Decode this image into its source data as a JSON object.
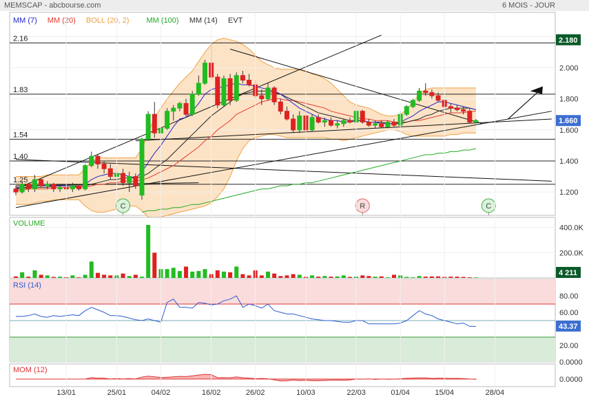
{
  "header": {
    "symbol_source": "MEMSCAP - abcbourse.com",
    "period": "6 MOIS - JOUR"
  },
  "legend": [
    {
      "label": "MM (7)",
      "color": "#2222cc"
    },
    {
      "label": "MM (20)",
      "color": "#e33b2e"
    },
    {
      "label": "BOLL (20, 2)",
      "color": "#f0a040"
    },
    {
      "label": "MM (100)",
      "color": "#22aa22"
    },
    {
      "label": "MM (14)",
      "color": "#333333"
    },
    {
      "label": "EVT",
      "color": "#333333"
    }
  ],
  "levels": [
    {
      "label": "2.16",
      "value": 2.16
    },
    {
      "label": "1.83",
      "value": 1.83
    },
    {
      "label": "1.54",
      "value": 1.54
    },
    {
      "label": "1.40",
      "value": 1.4
    },
    {
      "label": "1.25",
      "value": 1.25
    }
  ],
  "events": [
    {
      "letter": "C",
      "date_index": 17
    },
    {
      "letter": "R",
      "date_index": 55
    },
    {
      "letter": "C",
      "date_index": 75
    }
  ],
  "last_price_badge": "2.180",
  "current_price_badge": "1.660",
  "volume_label": "VOLUME",
  "volume_badge": "4 211",
  "rsi_label": "RSI (14)",
  "rsi_badge": "43.37",
  "mom_label": "MOM (12)",
  "colors": {
    "up": "#22bb22",
    "down": "#dd2222",
    "boll_fill": "#fde3c6",
    "panel_border": "#999999"
  },
  "chart_data": {
    "type": "candlestick",
    "x_tick_labels": [
      {
        "label": "13/01",
        "index": 8
      },
      {
        "label": "25/01",
        "index": 16
      },
      {
        "label": "04/02",
        "index": 23
      },
      {
        "label": "16/02",
        "index": 31
      },
      {
        "label": "26/02",
        "index": 38
      },
      {
        "label": "10/03",
        "index": 46
      },
      {
        "label": "22/03",
        "index": 54
      },
      {
        "label": "01/04",
        "index": 61
      },
      {
        "label": "15/04",
        "index": 68
      },
      {
        "label": "28/04",
        "index": 76
      }
    ],
    "price_axis": {
      "ticks": [
        2.2,
        2.0,
        1.8,
        1.6,
        1.4,
        1.2
      ],
      "tick_labels": [
        "2.200",
        "2.000",
        "1.800",
        "1.600",
        "1.400",
        "1.200"
      ],
      "ylim": [
        1.05,
        2.25
      ]
    },
    "candles": [
      [
        1.22,
        1.24,
        1.18,
        1.2
      ],
      [
        1.2,
        1.27,
        1.19,
        1.25
      ],
      [
        1.25,
        1.26,
        1.2,
        1.22
      ],
      [
        1.22,
        1.31,
        1.2,
        1.28
      ],
      [
        1.28,
        1.29,
        1.23,
        1.24
      ],
      [
        1.24,
        1.27,
        1.22,
        1.25
      ],
      [
        1.25,
        1.26,
        1.2,
        1.22
      ],
      [
        1.22,
        1.25,
        1.2,
        1.23
      ],
      [
        1.23,
        1.25,
        1.21,
        1.22
      ],
      [
        1.22,
        1.26,
        1.2,
        1.24
      ],
      [
        1.24,
        1.25,
        1.21,
        1.22
      ],
      [
        1.22,
        1.38,
        1.21,
        1.37
      ],
      [
        1.37,
        1.46,
        1.36,
        1.43
      ],
      [
        1.43,
        1.44,
        1.35,
        1.38
      ],
      [
        1.38,
        1.4,
        1.32,
        1.35
      ],
      [
        1.35,
        1.38,
        1.28,
        1.3
      ],
      [
        1.3,
        1.36,
        1.25,
        1.32
      ],
      [
        1.32,
        1.35,
        1.24,
        1.26
      ],
      [
        1.26,
        1.33,
        1.2,
        1.3
      ],
      [
        1.3,
        1.32,
        1.22,
        1.24
      ],
      [
        1.18,
        1.55,
        1.15,
        1.54
      ],
      [
        1.54,
        1.72,
        1.53,
        1.7
      ],
      [
        1.7,
        1.78,
        1.55,
        1.58
      ],
      [
        1.58,
        1.62,
        1.55,
        1.61
      ],
      [
        1.61,
        1.74,
        1.6,
        1.72
      ],
      [
        1.72,
        1.76,
        1.66,
        1.74
      ],
      [
        1.74,
        1.78,
        1.72,
        1.77
      ],
      [
        1.77,
        1.8,
        1.68,
        1.7
      ],
      [
        1.7,
        1.85,
        1.69,
        1.83
      ],
      [
        1.83,
        1.95,
        1.82,
        1.9
      ],
      [
        1.9,
        2.05,
        1.89,
        2.03
      ],
      [
        2.03,
        2.16,
        1.92,
        1.94
      ],
      [
        1.94,
        1.96,
        1.74,
        1.76
      ],
      [
        1.76,
        1.95,
        1.75,
        1.93
      ],
      [
        1.93,
        1.96,
        1.76,
        1.79
      ],
      [
        1.79,
        1.97,
        1.78,
        1.95
      ],
      [
        1.95,
        1.98,
        1.9,
        1.92
      ],
      [
        1.92,
        1.96,
        1.88,
        1.89
      ],
      [
        1.89,
        1.92,
        1.8,
        1.82
      ],
      [
        1.82,
        1.86,
        1.76,
        1.8
      ],
      [
        1.8,
        1.9,
        1.79,
        1.87
      ],
      [
        1.87,
        1.88,
        1.76,
        1.78
      ],
      [
        1.78,
        1.8,
        1.7,
        1.72
      ],
      [
        1.72,
        1.75,
        1.66,
        1.67
      ],
      [
        1.67,
        1.7,
        1.58,
        1.6
      ],
      [
        1.6,
        1.72,
        1.58,
        1.69
      ],
      [
        1.69,
        1.72,
        1.58,
        1.6
      ],
      [
        1.6,
        1.7,
        1.59,
        1.68
      ],
      [
        1.68,
        1.7,
        1.64,
        1.65
      ],
      [
        1.65,
        1.68,
        1.62,
        1.66
      ],
      [
        1.66,
        1.68,
        1.62,
        1.63
      ],
      [
        1.63,
        1.66,
        1.61,
        1.64
      ],
      [
        1.64,
        1.67,
        1.62,
        1.66
      ],
      [
        1.66,
        1.68,
        1.64,
        1.65
      ],
      [
        1.65,
        1.74,
        1.64,
        1.72
      ],
      [
        1.72,
        1.73,
        1.64,
        1.65
      ],
      [
        1.65,
        1.67,
        1.62,
        1.63
      ],
      [
        1.63,
        1.66,
        1.61,
        1.64
      ],
      [
        1.64,
        1.66,
        1.61,
        1.62
      ],
      [
        1.62,
        1.66,
        1.61,
        1.65
      ],
      [
        1.65,
        1.67,
        1.62,
        1.63
      ],
      [
        1.63,
        1.72,
        1.62,
        1.7
      ],
      [
        1.7,
        1.76,
        1.69,
        1.75
      ],
      [
        1.75,
        1.8,
        1.74,
        1.79
      ],
      [
        1.79,
        1.87,
        1.78,
        1.85
      ],
      [
        1.85,
        1.9,
        1.82,
        1.84
      ],
      [
        1.84,
        1.86,
        1.8,
        1.82
      ],
      [
        1.82,
        1.84,
        1.78,
        1.79
      ],
      [
        1.79,
        1.8,
        1.74,
        1.75
      ],
      [
        1.75,
        1.77,
        1.71,
        1.74
      ],
      [
        1.74,
        1.76,
        1.72,
        1.73
      ],
      [
        1.73,
        1.75,
        1.7,
        1.72
      ],
      [
        1.72,
        1.74,
        1.64,
        1.65
      ],
      [
        1.65,
        1.67,
        1.65,
        1.66
      ]
    ],
    "mm7": [
      1.23,
      1.23,
      1.23,
      1.24,
      1.24,
      1.24,
      1.24,
      1.24,
      1.24,
      1.24,
      1.23,
      1.25,
      1.28,
      1.3,
      1.31,
      1.32,
      1.32,
      1.31,
      1.3,
      1.29,
      1.33,
      1.39,
      1.45,
      1.5,
      1.56,
      1.62,
      1.67,
      1.68,
      1.72,
      1.77,
      1.83,
      1.86,
      1.87,
      1.88,
      1.89,
      1.9,
      1.89,
      1.89,
      1.88,
      1.87,
      1.86,
      1.85,
      1.83,
      1.8,
      1.77,
      1.74,
      1.72,
      1.7,
      1.68,
      1.67,
      1.66,
      1.66,
      1.65,
      1.65,
      1.66,
      1.66,
      1.65,
      1.65,
      1.64,
      1.64,
      1.64,
      1.65,
      1.67,
      1.69,
      1.72,
      1.74,
      1.76,
      1.78,
      1.78,
      1.77,
      1.76,
      1.75,
      1.74,
      1.73
    ],
    "mm14": [
      1.22,
      1.22,
      1.23,
      1.23,
      1.23,
      1.23,
      1.24,
      1.24,
      1.24,
      1.24,
      1.24,
      1.24,
      1.25,
      1.26,
      1.27,
      1.28,
      1.28,
      1.29,
      1.29,
      1.29,
      1.3,
      1.32,
      1.35,
      1.38,
      1.41,
      1.45,
      1.49,
      1.53,
      1.57,
      1.61,
      1.65,
      1.69,
      1.72,
      1.75,
      1.78,
      1.81,
      1.83,
      1.84,
      1.85,
      1.85,
      1.85,
      1.84,
      1.83,
      1.81,
      1.79,
      1.77,
      1.75,
      1.73,
      1.71,
      1.7,
      1.69,
      1.68,
      1.67,
      1.66,
      1.66,
      1.66,
      1.65,
      1.65,
      1.65,
      1.64,
      1.64,
      1.64,
      1.65,
      1.66,
      1.67,
      1.69,
      1.7,
      1.72,
      1.73,
      1.74,
      1.74,
      1.74,
      1.74,
      1.73
    ],
    "mm20": [
      1.21,
      1.21,
      1.22,
      1.22,
      1.22,
      1.22,
      1.23,
      1.23,
      1.23,
      1.23,
      1.23,
      1.23,
      1.24,
      1.25,
      1.25,
      1.26,
      1.26,
      1.27,
      1.27,
      1.27,
      1.28,
      1.29,
      1.31,
      1.33,
      1.35,
      1.37,
      1.4,
      1.43,
      1.46,
      1.49,
      1.53,
      1.56,
      1.6,
      1.63,
      1.66,
      1.7,
      1.72,
      1.74,
      1.76,
      1.78,
      1.79,
      1.8,
      1.8,
      1.79,
      1.79,
      1.78,
      1.77,
      1.76,
      1.75,
      1.74,
      1.72,
      1.71,
      1.7,
      1.69,
      1.68,
      1.67,
      1.67,
      1.66,
      1.66,
      1.66,
      1.65,
      1.65,
      1.65,
      1.66,
      1.66,
      1.67,
      1.68,
      1.69,
      1.7,
      1.71,
      1.71,
      1.71,
      1.72,
      1.72
    ],
    "mm100": [
      null,
      null,
      null,
      null,
      null,
      null,
      null,
      null,
      null,
      null,
      null,
      null,
      null,
      null,
      null,
      null,
      null,
      null,
      null,
      null,
      1.07,
      1.08,
      1.08,
      1.09,
      1.09,
      1.1,
      1.1,
      1.11,
      1.12,
      1.12,
      1.13,
      1.14,
      1.15,
      1.16,
      1.17,
      1.18,
      1.19,
      1.2,
      1.21,
      1.22,
      1.22,
      1.23,
      1.24,
      1.24,
      1.25,
      1.25,
      1.26,
      1.26,
      1.27,
      1.28,
      1.29,
      1.3,
      1.31,
      1.32,
      1.33,
      1.34,
      1.35,
      1.36,
      1.37,
      1.38,
      1.39,
      1.4,
      1.41,
      1.42,
      1.43,
      1.44,
      1.44,
      1.45,
      1.45,
      1.46,
      1.46,
      1.47,
      1.47,
      1.48
    ],
    "boll_upper": [
      1.3,
      1.3,
      1.3,
      1.3,
      1.3,
      1.31,
      1.31,
      1.31,
      1.31,
      1.31,
      1.31,
      1.35,
      1.4,
      1.42,
      1.42,
      1.42,
      1.42,
      1.42,
      1.42,
      1.42,
      1.48,
      1.58,
      1.68,
      1.74,
      1.8,
      1.85,
      1.9,
      1.94,
      1.98,
      2.04,
      2.1,
      2.15,
      2.18,
      2.19,
      2.18,
      2.17,
      2.15,
      2.12,
      2.08,
      2.04,
      2.02,
      2.0,
      1.99,
      1.99,
      1.99,
      1.99,
      1.98,
      1.96,
      1.95,
      1.93,
      1.9,
      1.86,
      1.82,
      1.78,
      1.76,
      1.75,
      1.74,
      1.72,
      1.7,
      1.69,
      1.69,
      1.7,
      1.73,
      1.78,
      1.83,
      1.86,
      1.87,
      1.87,
      1.87,
      1.87,
      1.87,
      1.87,
      1.87,
      1.87
    ],
    "boll_lower": [
      1.12,
      1.12,
      1.12,
      1.13,
      1.14,
      1.14,
      1.15,
      1.15,
      1.15,
      1.15,
      1.15,
      1.11,
      1.08,
      1.07,
      1.07,
      1.08,
      1.09,
      1.1,
      1.11,
      1.11,
      1.08,
      1.04,
      1.03,
      1.04,
      1.05,
      1.06,
      1.07,
      1.08,
      1.09,
      1.1,
      1.11,
      1.13,
      1.17,
      1.22,
      1.3,
      1.4,
      1.48,
      1.53,
      1.55,
      1.56,
      1.57,
      1.57,
      1.56,
      1.55,
      1.55,
      1.55,
      1.55,
      1.55,
      1.55,
      1.55,
      1.54,
      1.54,
      1.53,
      1.54,
      1.55,
      1.56,
      1.57,
      1.58,
      1.59,
      1.6,
      1.6,
      1.59,
      1.57,
      1.56,
      1.56,
      1.56,
      1.56,
      1.56,
      1.56,
      1.57,
      1.57,
      1.58,
      1.58,
      1.58
    ],
    "volume": {
      "ticks": [
        400000,
        200000
      ],
      "tick_labels": [
        "400.0K",
        "200.0K"
      ],
      "ylim": [
        0,
        480000
      ],
      "values": [
        12000,
        45000,
        10000,
        60000,
        25000,
        20000,
        8000,
        10000,
        6000,
        20000,
        5000,
        25000,
        130000,
        40000,
        25000,
        20000,
        20000,
        35000,
        15000,
        25000,
        10000,
        420000,
        200000,
        70000,
        70000,
        80000,
        55000,
        90000,
        50000,
        55000,
        70000,
        30000,
        60000,
        50000,
        45000,
        90000,
        30000,
        20000,
        60000,
        20000,
        50000,
        35000,
        15000,
        20000,
        30000,
        25000,
        8000,
        20000,
        10000,
        15000,
        10000,
        12000,
        20000,
        8000,
        10000,
        20000,
        15000,
        10000,
        12000,
        5000,
        25000,
        20000,
        8000,
        5000,
        15000,
        10000,
        12000,
        12000,
        8000,
        10000,
        10000,
        8000,
        5000,
        4211
      ]
    },
    "rsi": {
      "ticks": [
        80,
        60,
        40,
        20,
        0
      ],
      "tick_labels": [
        "80.00",
        "60.00",
        "40.00",
        "20.00",
        "0.0000"
      ],
      "ylim": [
        0,
        100
      ],
      "overbought": 70,
      "oversold": 30,
      "values": [
        55,
        55,
        56,
        58,
        55,
        54,
        56,
        55,
        56,
        57,
        56,
        62,
        66,
        63,
        60,
        56,
        56,
        55,
        53,
        51,
        50,
        52,
        50,
        48,
        72,
        76,
        66,
        66,
        65,
        72,
        71,
        69,
        70,
        74,
        76,
        80,
        66,
        70,
        68,
        65,
        70,
        62,
        60,
        58,
        58,
        56,
        54,
        52,
        51,
        50,
        50,
        49,
        48,
        48,
        50,
        50,
        46,
        46,
        46,
        46,
        46,
        47,
        50,
        56,
        62,
        58,
        56,
        52,
        50,
        48,
        46,
        47,
        43,
        43
      ]
    },
    "mom": {
      "tick_labels": [
        "0.0000"
      ],
      "ylim": [
        -0.3,
        0.6
      ]
    }
  }
}
